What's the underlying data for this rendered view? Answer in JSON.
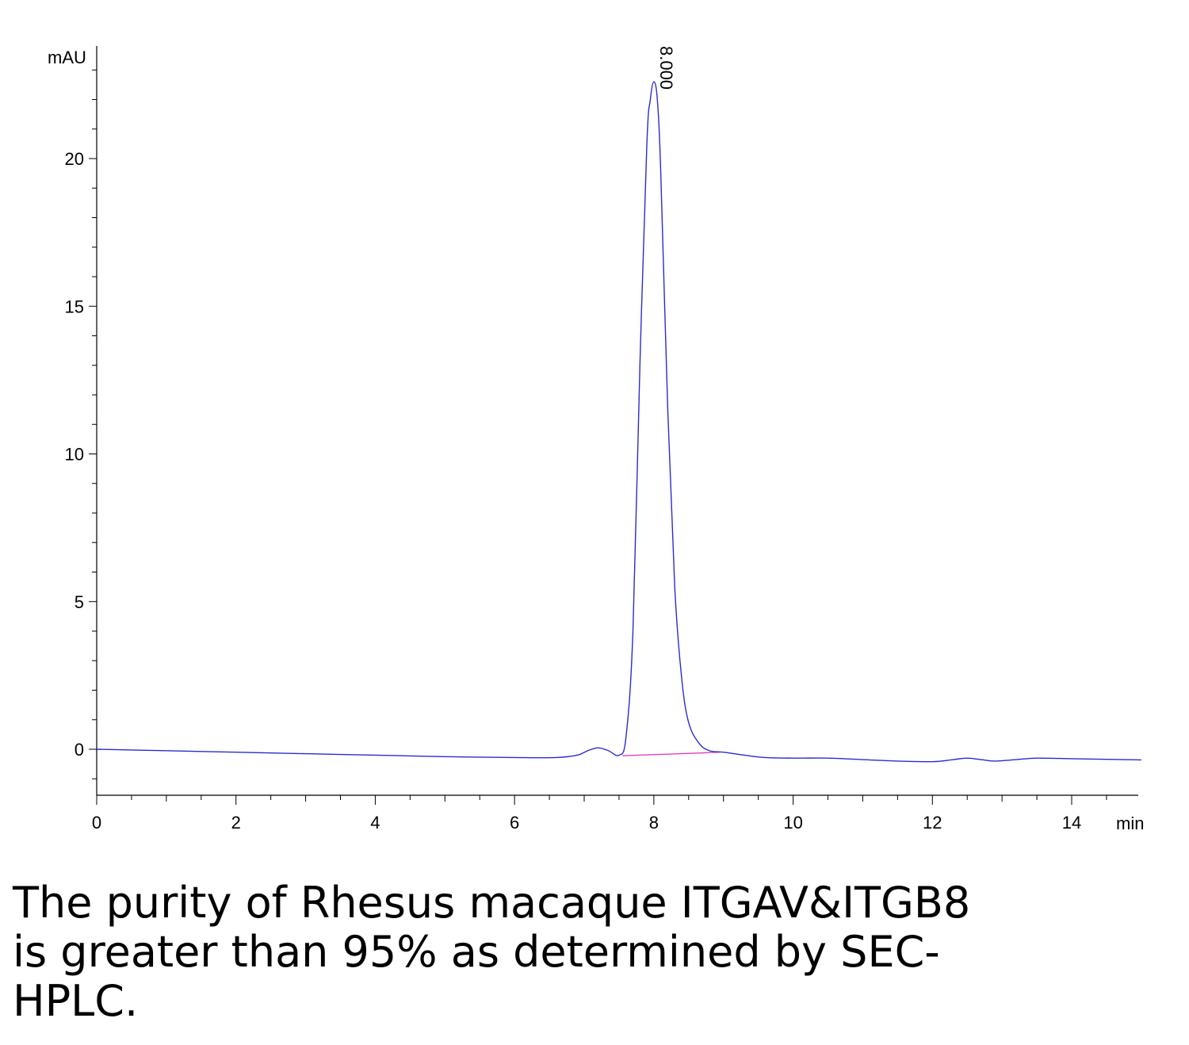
{
  "chart_data": {
    "type": "line",
    "title": "",
    "xlabel": "min",
    "ylabel": "mAU",
    "xlim": [
      0,
      15
    ],
    "ylim": [
      -1.6,
      23.5
    ],
    "x_ticks": [
      0,
      2,
      4,
      6,
      8,
      10,
      12,
      14
    ],
    "y_ticks": [
      0,
      5,
      10,
      15,
      20
    ],
    "grid": false,
    "legend": "none",
    "series": [
      {
        "color": "#2b2bd6",
        "x": [
          0,
          1,
          2,
          3,
          4,
          5,
          6,
          6.6,
          6.9,
          7.05,
          7.2,
          7.35,
          7.5,
          7.6,
          7.7,
          7.8,
          7.9,
          7.95,
          8.0,
          8.05,
          8.1,
          8.2,
          8.3,
          8.4,
          8.5,
          8.65,
          8.8,
          9.0,
          9.3,
          9.6,
          10,
          10.5,
          11,
          11.5,
          12,
          12.3,
          12.5,
          12.7,
          12.9,
          13.2,
          13.5,
          14,
          14.5,
          15
        ],
        "y": [
          0.0,
          -0.05,
          -0.1,
          -0.15,
          -0.2,
          -0.25,
          -0.28,
          -0.28,
          -0.2,
          -0.05,
          0.05,
          -0.05,
          -0.2,
          0.4,
          4.0,
          13.0,
          20.5,
          22.0,
          22.6,
          22.0,
          19.5,
          11.5,
          5.5,
          2.4,
          0.9,
          0.2,
          -0.05,
          -0.1,
          -0.2,
          -0.28,
          -0.3,
          -0.3,
          -0.35,
          -0.4,
          -0.42,
          -0.35,
          -0.3,
          -0.35,
          -0.4,
          -0.35,
          -0.3,
          -0.32,
          -0.34,
          -0.36
        ]
      }
    ],
    "baseline": {
      "color": "#e040c0",
      "x": [
        7.55,
        8.95
      ],
      "y": [
        -0.22,
        -0.1
      ]
    },
    "annotations": [
      {
        "text": "8.000",
        "x": 8.0,
        "y": 22.6
      }
    ]
  },
  "caption": {
    "line1": "The purity of Rhesus macaque ITGAV&ITGB8",
    "line2": "is greater than 95% as determined by SEC-",
    "line3": "HPLC."
  }
}
